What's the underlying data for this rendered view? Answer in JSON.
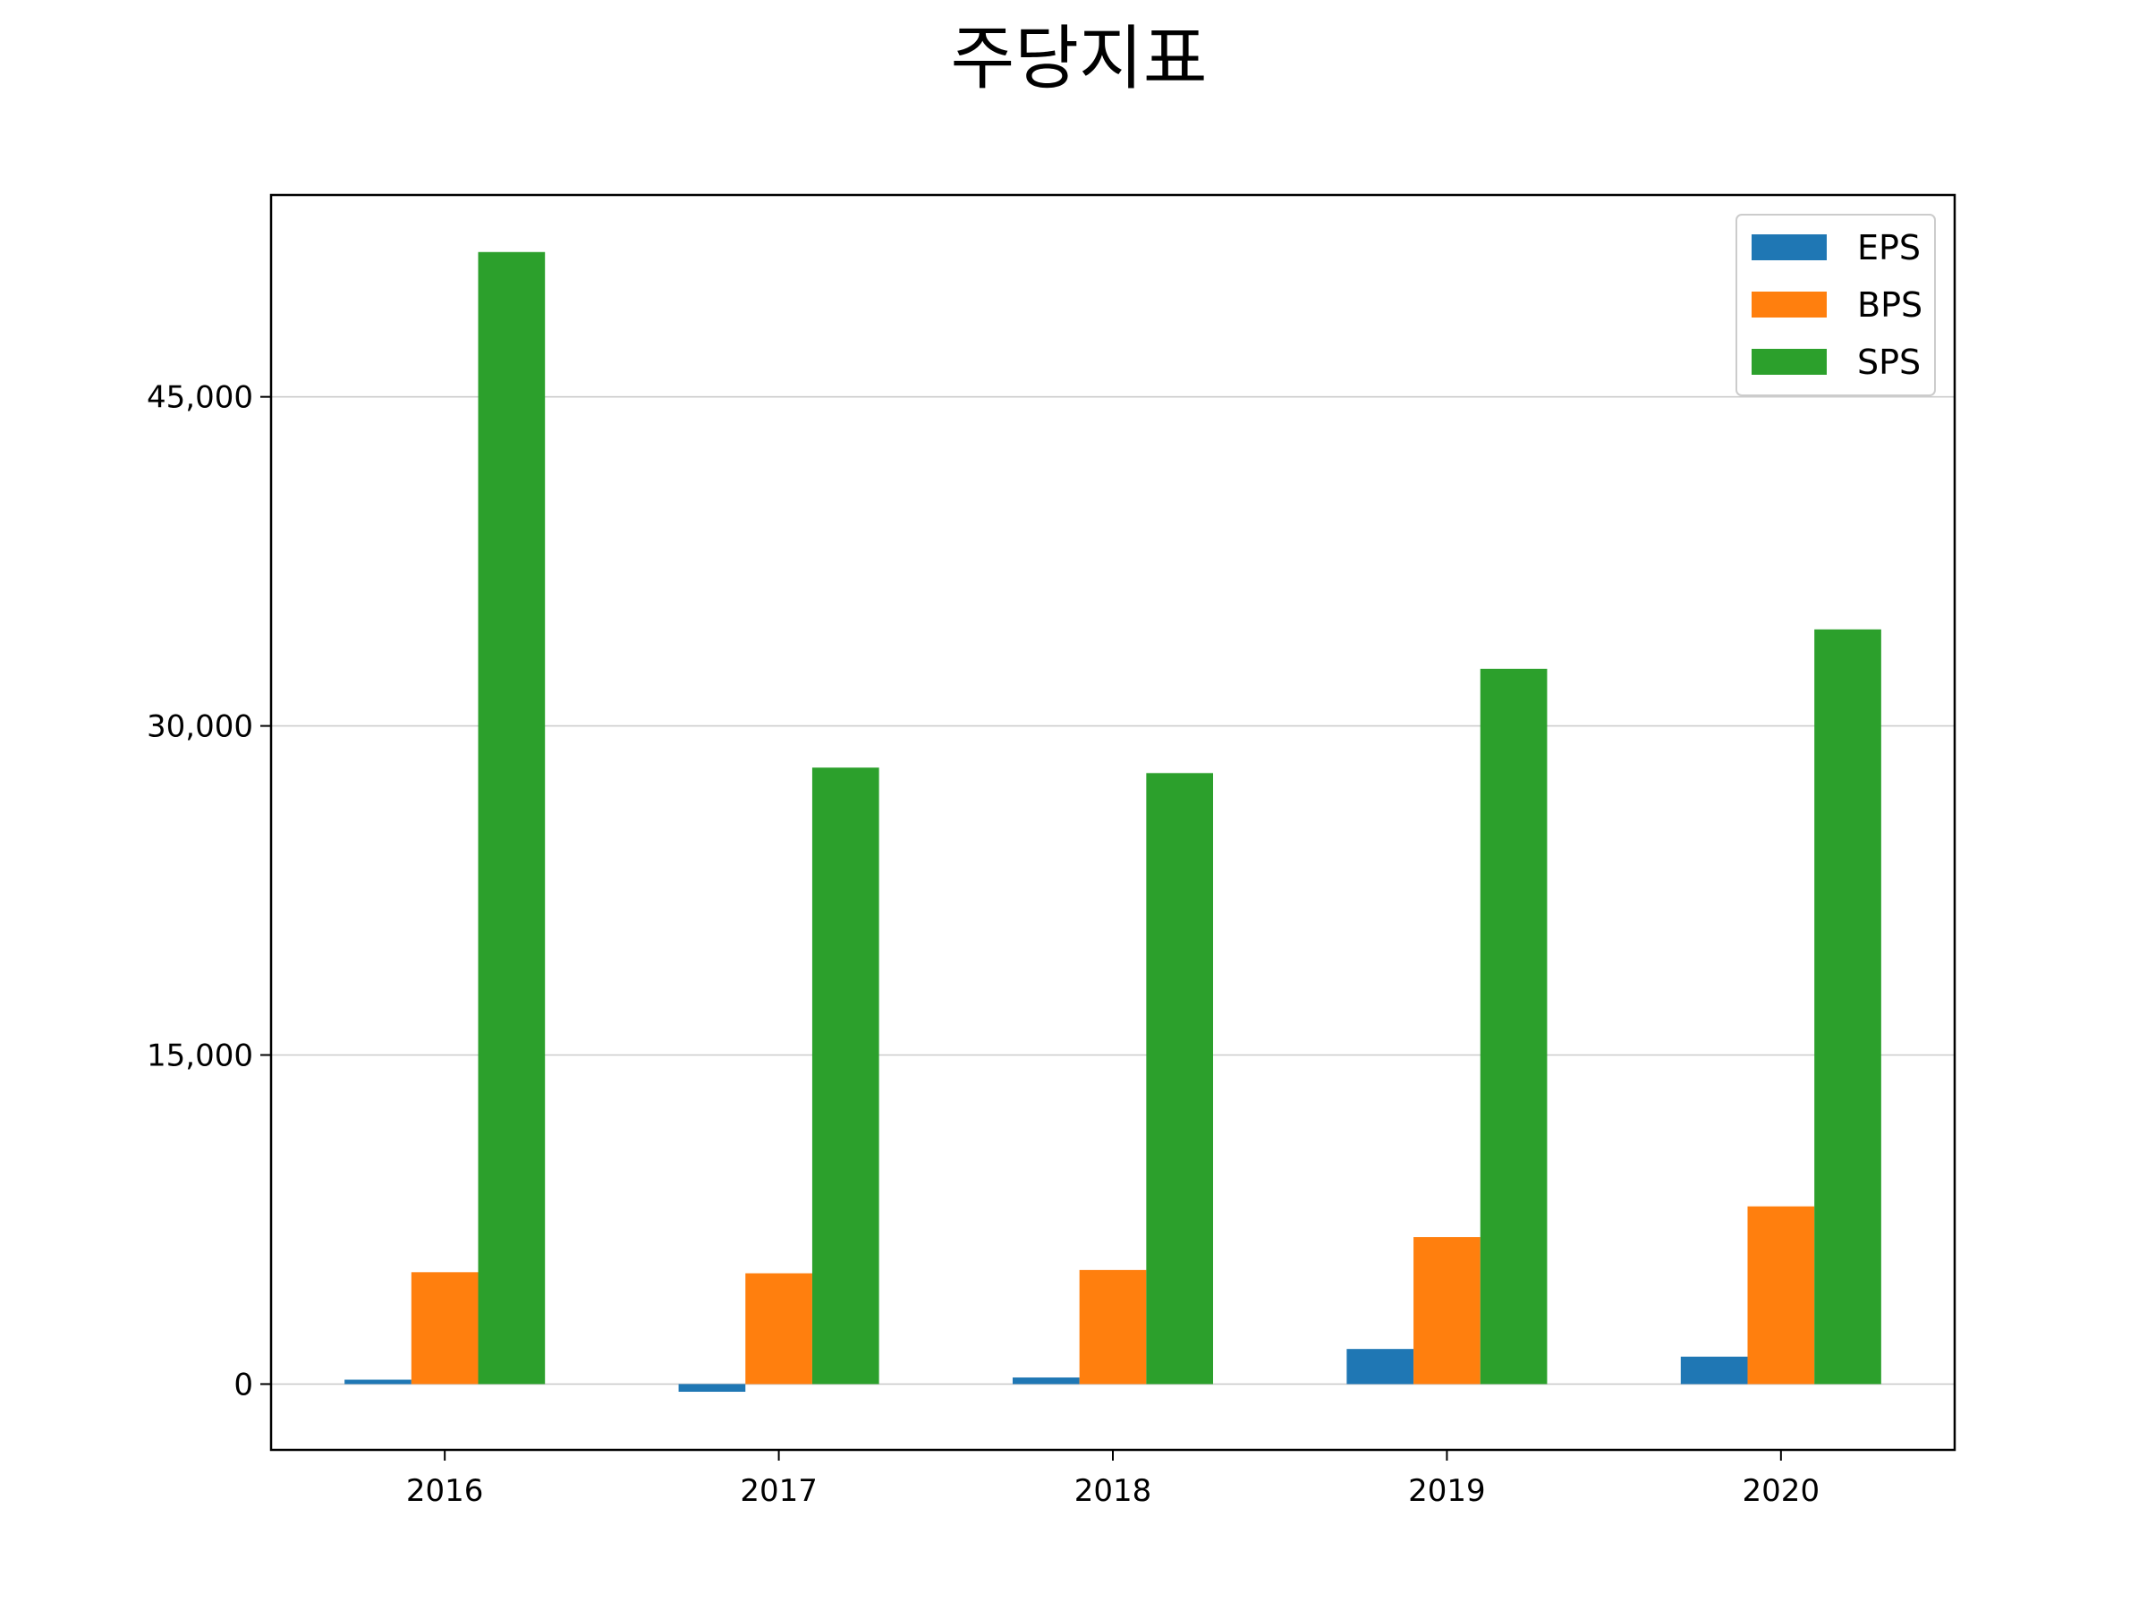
{
  "chart_data": {
    "type": "bar",
    "title": "주당지표",
    "xlabel": "",
    "ylabel": "",
    "categories": [
      "2016",
      "2017",
      "2018",
      "2019",
      "2020"
    ],
    "ylim": [
      -3000,
      54200
    ],
    "yticks": [
      0,
      15000,
      30000,
      45000
    ],
    "ytick_labels": [
      "0",
      "15,000",
      "30,000",
      "45,000"
    ],
    "grid": "horizontal",
    "legend_position": "top-right",
    "series": [
      {
        "name": "EPS",
        "color": "#1f77b4",
        "values": [
          200,
          -350,
          300,
          1600,
          1250
        ]
      },
      {
        "name": "BPS",
        "color": "#ff7f0e",
        "values": [
          5100,
          5050,
          5200,
          6700,
          8100
        ]
      },
      {
        "name": "SPS",
        "color": "#2ca02c",
        "values": [
          51600,
          28100,
          27850,
          32600,
          34400
        ]
      }
    ]
  }
}
